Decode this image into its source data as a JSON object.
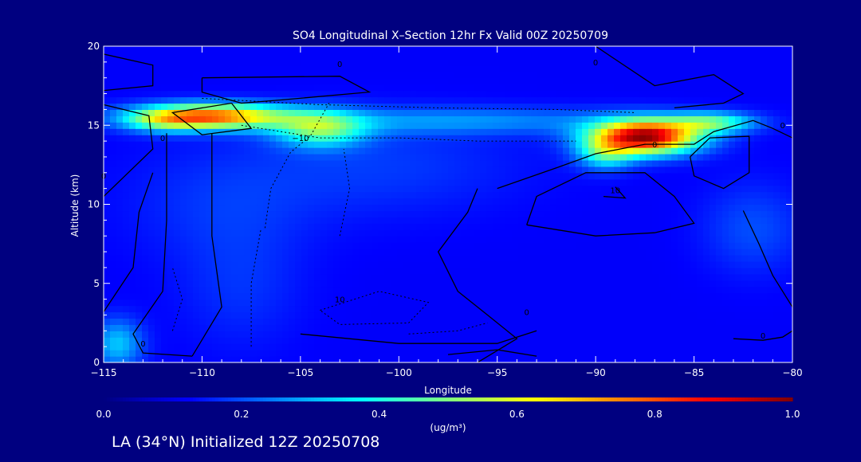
{
  "chart_data": {
    "type": "heatmap",
    "title": "SO4 Longitudinal X–Section 12hr  Fx Valid 00Z 20250709",
    "xlabel": "Longitude",
    "ylabel": "Altitude (km)",
    "xlim": [
      -115,
      -80
    ],
    "ylim": [
      0,
      20
    ],
    "xticks": [
      -115,
      -110,
      -105,
      -100,
      -95,
      -90,
      -85,
      -80
    ],
    "xtick_labels": [
      "−115",
      "−110",
      "−105",
      "−100",
      "−95",
      "−90",
      "−85",
      "−80"
    ],
    "yticks": [
      0,
      5,
      10,
      15,
      20
    ],
    "ytick_labels": [
      "0",
      "5",
      "10",
      "15",
      "20"
    ],
    "colorbar": {
      "min": 0.0,
      "max": 1.0,
      "ticks": [
        0.0,
        0.2,
        0.4,
        0.6,
        0.8,
        1.0
      ],
      "tick_labels": [
        "0.0",
        "0.2",
        "0.4",
        "0.6",
        "0.8",
        "1.0"
      ],
      "unit": "(ug/m³)",
      "colormap": "jet"
    },
    "background_value": 0.12,
    "blobs": [
      {
        "x": -109.5,
        "y": 15.6,
        "sx": 2.6,
        "sy": 0.55,
        "v": 0.62
      },
      {
        "x": -104.0,
        "y": 14.8,
        "sx": 1.6,
        "sy": 0.8,
        "v": 0.33
      },
      {
        "x": -112.0,
        "y": 15.3,
        "sx": 1.5,
        "sy": 0.5,
        "v": 0.2
      },
      {
        "x": -87.5,
        "y": 14.3,
        "sx": 1.9,
        "sy": 0.75,
        "v": 0.85
      },
      {
        "x": -89.5,
        "y": 13.2,
        "sx": 1.0,
        "sy": 0.7,
        "v": 0.25
      },
      {
        "x": -84.0,
        "y": 15.2,
        "sx": 1.5,
        "sy": 0.45,
        "v": 0.3
      },
      {
        "x": -97.0,
        "y": 15.3,
        "sx": 7.0,
        "sy": 0.6,
        "v": 0.14
      },
      {
        "x": -101.0,
        "y": 12.5,
        "sx": 5.0,
        "sy": 2.2,
        "v": 0.06
      },
      {
        "x": -114.3,
        "y": 1.2,
        "sx": 0.9,
        "sy": 1.1,
        "v": 0.2
      },
      {
        "x": -108.0,
        "y": 4.8,
        "sx": 2.2,
        "sy": 2.8,
        "v": 0.05
      },
      {
        "x": -82.0,
        "y": 8.5,
        "sx": 1.8,
        "sy": 2.0,
        "v": 0.08
      },
      {
        "x": -109.0,
        "y": 10.0,
        "sx": 3.5,
        "sy": 2.5,
        "v": 0.05
      }
    ],
    "contour_labels": [
      {
        "x": -103.0,
        "y": 18.7,
        "text": "0"
      },
      {
        "x": -90.0,
        "y": 18.8,
        "text": "0"
      },
      {
        "x": -115.0,
        "y": 11.6,
        "text": "0"
      },
      {
        "x": -112.0,
        "y": 14.0,
        "text": "0"
      },
      {
        "x": -105.0,
        "y": 14.0,
        "text": "−10"
      },
      {
        "x": -87.0,
        "y": 13.6,
        "text": "0"
      },
      {
        "x": -89.0,
        "y": 10.7,
        "text": "10"
      },
      {
        "x": -103.0,
        "y": 3.8,
        "text": "10"
      },
      {
        "x": -93.5,
        "y": 3.0,
        "text": "0"
      },
      {
        "x": -113.0,
        "y": 1.0,
        "text": "0"
      },
      {
        "x": -81.5,
        "y": 1.5,
        "text": "0"
      },
      {
        "x": -80.5,
        "y": 14.8,
        "text": "0"
      }
    ],
    "contours_solid": [
      [
        [
          -115,
          19.5
        ],
        [
          -112.5,
          18.8
        ],
        [
          -112.5,
          17.5
        ],
        [
          -115,
          17.2
        ]
      ],
      [
        [
          -110,
          18
        ],
        [
          -103,
          18.1
        ],
        [
          -101.5,
          17.1
        ],
        [
          -106,
          16.6
        ],
        [
          -108,
          16.4
        ],
        [
          -110,
          17.1
        ],
        [
          -110,
          18
        ]
      ],
      [
        [
          -108.5,
          16.4
        ],
        [
          -107.5,
          14.8
        ],
        [
          -110,
          14.4
        ],
        [
          -111.5,
          15.8
        ],
        [
          -108.5,
          16.4
        ]
      ],
      [
        [
          -115,
          10.5
        ],
        [
          -112.5,
          13.5
        ],
        [
          -112.7,
          15.6
        ],
        [
          -115,
          16.3
        ]
      ],
      [
        [
          -111.8,
          14.5
        ],
        [
          -111.8,
          9
        ],
        [
          -112,
          4.5
        ],
        [
          -113.5,
          1.8
        ],
        [
          -113,
          0.6
        ],
        [
          -110.5,
          0.4
        ]
      ],
      [
        [
          -109.5,
          14.5
        ],
        [
          -109.5,
          8
        ],
        [
          -109,
          3.5
        ],
        [
          -110.5,
          0.4
        ]
      ],
      [
        [
          -115,
          3.2
        ],
        [
          -113.5,
          6
        ],
        [
          -113.2,
          9.5
        ],
        [
          -112.5,
          12
        ]
      ],
      [
        [
          -90,
          20
        ],
        [
          -87,
          17.5
        ],
        [
          -84,
          18.2
        ],
        [
          -82.5,
          17
        ],
        [
          -83.5,
          16.4
        ],
        [
          -86,
          16.1
        ]
      ],
      [
        [
          -96,
          0
        ],
        [
          -94,
          1.5
        ],
        [
          -95.5,
          3
        ],
        [
          -97,
          4.5
        ],
        [
          -98,
          7
        ],
        [
          -96.5,
          9.5
        ],
        [
          -96,
          11
        ]
      ],
      [
        [
          -95,
          11
        ],
        [
          -92,
          12.3
        ],
        [
          -90,
          13.2
        ],
        [
          -87.5,
          13.8
        ],
        [
          -85,
          13.8
        ],
        [
          -84,
          14.6
        ],
        [
          -82,
          15.3
        ],
        [
          -81,
          14.8
        ],
        [
          -80,
          14.2
        ]
      ],
      [
        [
          -93.5,
          8.7
        ],
        [
          -93,
          10.5
        ],
        [
          -90.5,
          12
        ],
        [
          -87.5,
          12
        ],
        [
          -86,
          10.5
        ],
        [
          -85,
          8.8
        ],
        [
          -87,
          8.2
        ],
        [
          -90,
          8
        ],
        [
          -93.5,
          8.7
        ]
      ],
      [
        [
          -85.2,
          13
        ],
        [
          -84.2,
          14.2
        ],
        [
          -82.2,
          14.3
        ],
        [
          -82.2,
          12
        ],
        [
          -83.5,
          11
        ],
        [
          -85,
          11.8
        ],
        [
          -85.2,
          13
        ]
      ],
      [
        [
          -89,
          11.1
        ],
        [
          -88.5,
          10.4
        ],
        [
          -89.6,
          10.5
        ]
      ],
      [
        [
          -82.5,
          9.6
        ],
        [
          -81.7,
          7.5
        ],
        [
          -81,
          5.5
        ],
        [
          -80.5,
          4.5
        ],
        [
          -80,
          3.5
        ]
      ],
      [
        [
          -83,
          1.5
        ],
        [
          -81.5,
          1.4
        ],
        [
          -80.5,
          1.6
        ],
        [
          -80,
          2
        ]
      ],
      [
        [
          -105,
          1.8
        ],
        [
          -100,
          1.2
        ],
        [
          -95,
          1.2
        ],
        [
          -93,
          2
        ]
      ],
      [
        [
          -97.5,
          0.5
        ],
        [
          -95,
          0.8
        ],
        [
          -93,
          0.4
        ]
      ]
    ],
    "contours_dashed": [
      [
        [
          -106.8,
          8.5
        ],
        [
          -106.5,
          11
        ],
        [
          -105.5,
          13.3
        ],
        [
          -104.5,
          14.3
        ],
        [
          -103.5,
          16.5
        ]
      ],
      [
        [
          -103,
          8
        ],
        [
          -102.5,
          11
        ],
        [
          -102.8,
          13.5
        ]
      ],
      [
        [
          -110,
          16.7
        ],
        [
          -104,
          16.3
        ],
        [
          -98,
          16.1
        ],
        [
          -92,
          16
        ],
        [
          -88,
          15.8
        ]
      ],
      [
        [
          -107.5,
          1
        ],
        [
          -107.5,
          5
        ],
        [
          -107,
          8.5
        ]
      ],
      [
        [
          -104,
          3.3
        ],
        [
          -101,
          4.5
        ],
        [
          -98.5,
          3.8
        ],
        [
          -99.5,
          2.5
        ],
        [
          -103,
          2.4
        ],
        [
          -104,
          3.3
        ]
      ],
      [
        [
          -99.5,
          1.8
        ],
        [
          -97,
          2
        ],
        [
          -95.5,
          2.5
        ]
      ],
      [
        [
          -108,
          15
        ],
        [
          -104,
          14.2
        ],
        [
          -100,
          14.2
        ],
        [
          -96,
          14
        ],
        [
          -91,
          14
        ]
      ],
      [
        [
          -111.5,
          2
        ],
        [
          -111,
          4
        ],
        [
          -111.5,
          6
        ]
      ]
    ]
  },
  "footer": {
    "caption": "LA (34°N) Initialized 12Z 20250708"
  }
}
